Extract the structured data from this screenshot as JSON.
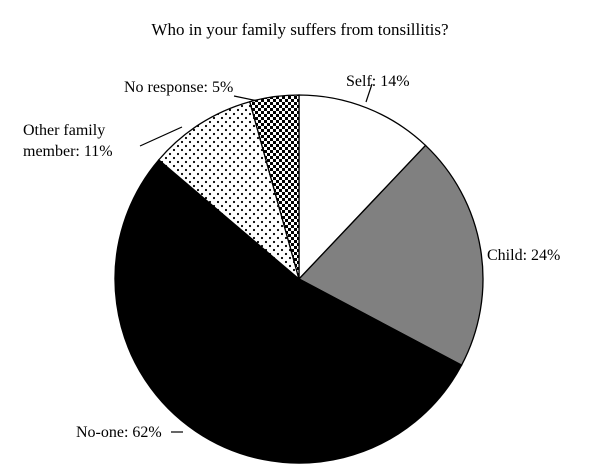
{
  "chart_data": {
    "type": "pie",
    "title": "Who in your family suffers from tonsillitis?",
    "slices": [
      {
        "label": "Self",
        "value": 14,
        "display": "Self: 14%",
        "fill": "#ffffff",
        "pattern": "none"
      },
      {
        "label": "Child",
        "value": 24,
        "display": "Child: 24%",
        "fill": "#808080",
        "pattern": "none"
      },
      {
        "label": "No-one",
        "value": 62,
        "display": "No-one: 62%",
        "fill": "#000000",
        "pattern": "none"
      },
      {
        "label": "Other family member",
        "value": 11,
        "display_lines": [
          "Other family",
          "member: 11%"
        ],
        "fill": "#ffffff",
        "pattern": "dots"
      },
      {
        "label": "No response",
        "value": 5,
        "display": "No response: 5%",
        "fill": "#ffffff",
        "pattern": "checker"
      }
    ],
    "start_angle_deg": 0,
    "direction": "clockwise"
  }
}
